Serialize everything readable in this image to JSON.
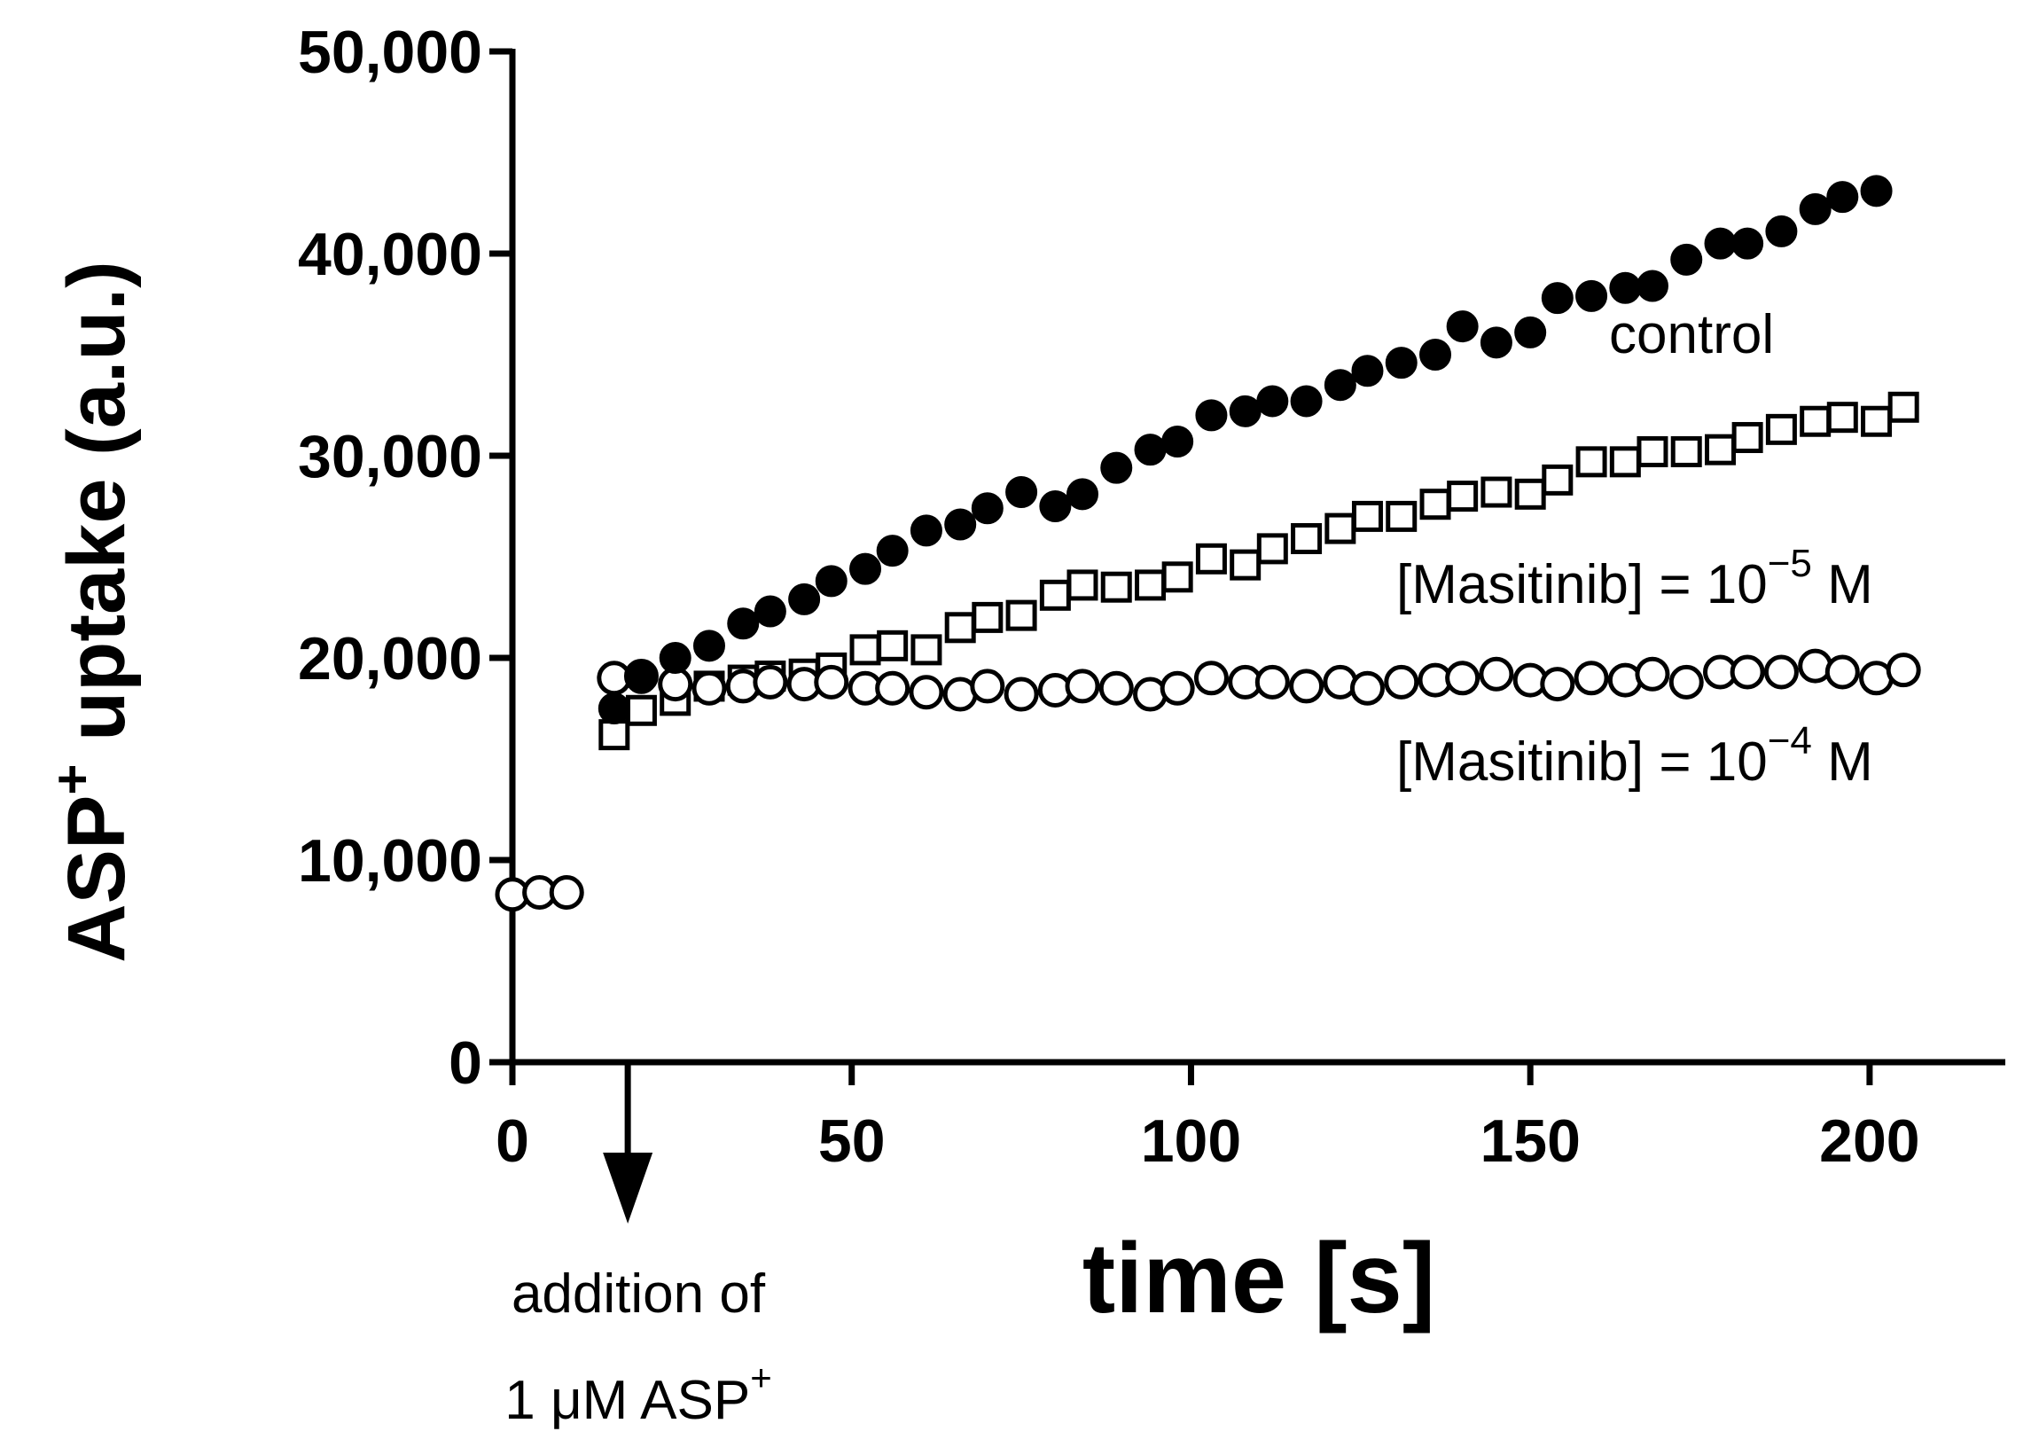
{
  "chart_data": {
    "type": "scatter",
    "title": "",
    "xlabel": "time [s]",
    "ylabel_main": "ASP",
    "ylabel_sup": "+",
    "ylabel_rest": " uptake (a.u.)",
    "xlim": [
      0,
      220
    ],
    "ylim": [
      0,
      50000
    ],
    "x_ticks": [
      0,
      50,
      100,
      150,
      200
    ],
    "x_tick_labels": [
      "0",
      "50",
      "100",
      "150",
      "200"
    ],
    "y_ticks": [
      0,
      10000,
      20000,
      30000,
      40000,
      50000
    ],
    "y_tick_labels": [
      "0",
      "10,000",
      "20,000",
      "30,000",
      "40,000",
      "50,000"
    ],
    "grid": false,
    "legend": "none",
    "baseline": {
      "x": [
        0,
        4,
        8
      ],
      "y": [
        8300,
        8400,
        8400
      ]
    },
    "series": [
      {
        "name": "control",
        "marker": "filled-circle",
        "x": [
          15,
          19,
          24,
          29,
          34,
          38,
          43,
          47,
          52,
          56,
          61,
          66,
          70,
          75,
          80,
          84,
          89,
          94,
          98,
          103,
          108,
          112,
          117,
          122,
          126,
          131,
          136,
          140,
          145,
          150,
          154,
          159,
          164,
          168,
          173,
          178,
          182,
          187,
          192,
          196,
          201
        ],
        "y": [
          17500,
          19000,
          20000,
          20600,
          21700,
          22300,
          22900,
          23800,
          24400,
          25300,
          26300,
          26600,
          27400,
          28200,
          27500,
          28100,
          29400,
          30300,
          30700,
          32000,
          32200,
          32700,
          32700,
          33500,
          34200,
          34600,
          35000,
          36400,
          35600,
          36100,
          37800,
          37900,
          38300,
          38400,
          39700,
          40500,
          40500,
          41100,
          42200,
          42800,
          43100
        ]
      },
      {
        "name": "[Masitinib] = 10−5 M",
        "label_main": "[Masitinib] = 10",
        "label_exp": "−5",
        "label_unit": " M",
        "marker": "open-square",
        "x": [
          15,
          19,
          24,
          29,
          34,
          38,
          43,
          47,
          52,
          56,
          61,
          66,
          70,
          75,
          80,
          84,
          89,
          94,
          98,
          103,
          108,
          112,
          117,
          122,
          126,
          131,
          136,
          140,
          145,
          150,
          154,
          159,
          164,
          168,
          173,
          178,
          182,
          187,
          192,
          196,
          201,
          205
        ],
        "y": [
          16200,
          17400,
          17900,
          18600,
          18900,
          19100,
          19200,
          19500,
          20400,
          20600,
          20400,
          21500,
          22000,
          22100,
          23100,
          23600,
          23500,
          23600,
          24000,
          24900,
          24600,
          25400,
          25900,
          26400,
          27000,
          27000,
          27600,
          28000,
          28200,
          28100,
          28800,
          29700,
          29700,
          30200,
          30200,
          30300,
          30900,
          31300,
          31700,
          31900,
          31700,
          32400
        ]
      },
      {
        "name": "[Masitinib] = 10−4 M",
        "label_main": "[Masitinib] = 10",
        "label_exp": "−4",
        "label_unit": " M",
        "marker": "open-circle",
        "x": [
          15,
          19,
          24,
          29,
          34,
          38,
          43,
          47,
          52,
          56,
          61,
          66,
          70,
          75,
          80,
          84,
          89,
          94,
          98,
          103,
          108,
          112,
          117,
          122,
          126,
          131,
          136,
          140,
          145,
          150,
          154,
          159,
          164,
          168,
          173,
          178,
          182,
          187,
          192,
          196,
          201,
          205
        ],
        "y": [
          19000,
          19100,
          18700,
          18500,
          18600,
          18800,
          18700,
          18800,
          18500,
          18500,
          18300,
          18200,
          18600,
          18200,
          18400,
          18600,
          18500,
          18200,
          18500,
          19000,
          18800,
          18800,
          18600,
          18800,
          18500,
          18800,
          18900,
          19000,
          19200,
          18900,
          18700,
          19000,
          18900,
          19200,
          18800,
          19300,
          19300,
          19300,
          19600,
          19300,
          19000,
          19400
        ]
      }
    ],
    "annotation": {
      "line1": "addition of",
      "line2_main": "1 μM ASP",
      "line2_sup": "+",
      "arrow_x": 17
    }
  }
}
